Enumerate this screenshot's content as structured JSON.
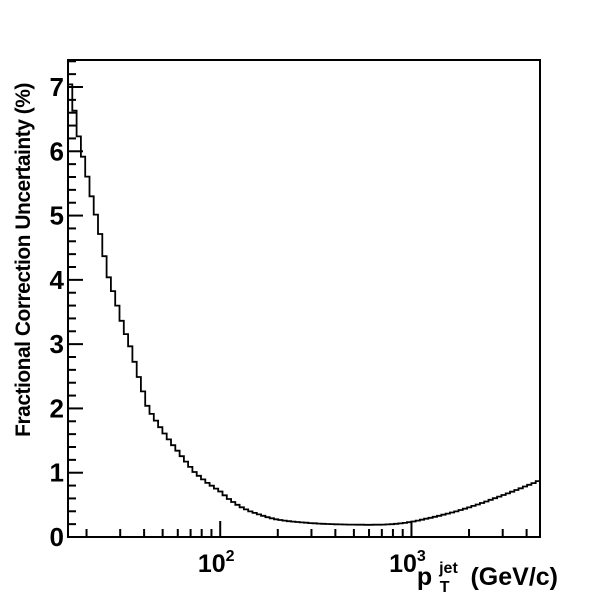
{
  "page": {
    "background_color": "#ffffff",
    "foreground_color": "#000000"
  },
  "chart_data": {
    "type": "line",
    "subtype": "step-histogram",
    "title": "",
    "ylabel": "Fractional Correction Uncertainty (%)",
    "xlabel": {
      "base": "p",
      "sup": "jet",
      "sub": "T",
      "unit": " (GeV/c)"
    },
    "x_scale": "log",
    "y_scale": "linear",
    "xlim": [
      16,
      4700
    ],
    "ylim": [
      0,
      7.42
    ],
    "grid": false,
    "legend": "none",
    "curve_color": "#000000",
    "axis_color": "#000000",
    "x_major_ticks": [
      {
        "value": 100,
        "mantissa": "10",
        "exponent": "2"
      },
      {
        "value": 1000,
        "mantissa": "10",
        "exponent": "3"
      }
    ],
    "x_minor_ticks": [
      20,
      30,
      40,
      50,
      60,
      70,
      80,
      90,
      200,
      300,
      400,
      500,
      600,
      700,
      800,
      900,
      2000,
      3000,
      4000
    ],
    "y_major_ticks": [
      0,
      1,
      2,
      3,
      4,
      5,
      6,
      7
    ],
    "y_minor_tick_step": 0.2,
    "n_bins": 110,
    "series": [
      {
        "name": "fractional-correction-uncertainty",
        "units_x": "GeV/c",
        "units_y": "%",
        "points": [
          [
            16,
            7.08
          ],
          [
            16.4,
            7.05
          ],
          [
            17.4,
            6.58
          ],
          [
            18.4,
            6.15
          ],
          [
            19.6,
            5.79
          ],
          [
            20.8,
            5.42
          ],
          [
            22,
            5.11
          ],
          [
            23.2,
            4.82
          ],
          [
            24.7,
            4.4
          ],
          [
            26.3,
            4.0
          ],
          [
            28,
            3.76
          ],
          [
            30,
            3.44
          ],
          [
            31.3,
            3.25
          ],
          [
            33.6,
            3.0
          ],
          [
            37,
            2.55
          ],
          [
            42,
            2.0
          ],
          [
            48,
            1.73
          ],
          [
            52,
            1.58
          ],
          [
            57,
            1.42
          ],
          [
            62,
            1.28
          ],
          [
            68,
            1.13
          ],
          [
            74,
            1.0
          ],
          [
            85,
            0.85
          ],
          [
            100,
            0.71
          ],
          [
            110,
            0.6
          ],
          [
            120,
            0.52
          ],
          [
            130,
            0.46
          ],
          [
            143,
            0.4
          ],
          [
            160,
            0.35
          ],
          [
            180,
            0.3
          ],
          [
            200,
            0.27
          ],
          [
            230,
            0.245
          ],
          [
            260,
            0.23
          ],
          [
            300,
            0.215
          ],
          [
            350,
            0.205
          ],
          [
            400,
            0.198
          ],
          [
            500,
            0.192
          ],
          [
            600,
            0.19
          ],
          [
            700,
            0.192
          ],
          [
            800,
            0.2
          ],
          [
            900,
            0.215
          ],
          [
            1000,
            0.235
          ],
          [
            1200,
            0.285
          ],
          [
            1400,
            0.33
          ],
          [
            1700,
            0.395
          ],
          [
            2000,
            0.46
          ],
          [
            2400,
            0.54
          ],
          [
            2800,
            0.615
          ],
          [
            3200,
            0.68
          ],
          [
            3600,
            0.74
          ],
          [
            4000,
            0.795
          ],
          [
            4400,
            0.845
          ],
          [
            4700,
            0.885
          ]
        ]
      }
    ]
  }
}
